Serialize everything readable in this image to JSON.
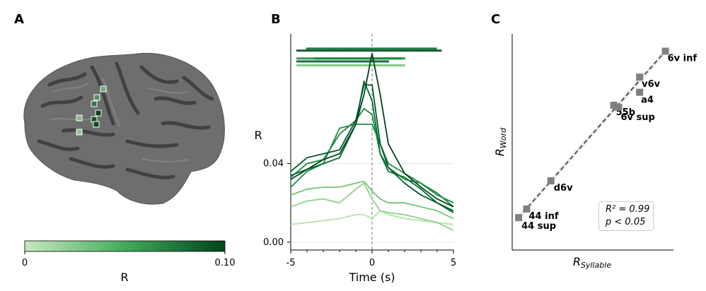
{
  "panels": {
    "a": "A",
    "b": "B",
    "c": "C"
  },
  "colorbar": {
    "min_label": "0",
    "max_label": "0.10",
    "label": "R",
    "colors": [
      "#c7e9c0",
      "#00441b"
    ]
  },
  "brain": {
    "electrodes": [
      {
        "r": 0.055
      },
      {
        "r": 0.04
      },
      {
        "r": 0.07
      },
      {
        "r": 0.1
      },
      {
        "r": 0.09
      },
      {
        "r": 0.095
      },
      {
        "r": 0.03
      },
      {
        "r": 0.025
      }
    ]
  },
  "chart_data": [
    {
      "type": "line",
      "panel": "B",
      "ylabel": "R",
      "xlabel": "Time (s)",
      "xlim": [
        -5,
        5
      ],
      "ylim": [
        -0.004,
        0.106
      ],
      "xticks": [
        "-5",
        "0",
        "5"
      ],
      "yticks": [
        "0.00",
        "0.04"
      ],
      "yticks_values": [
        0.0,
        0.04
      ],
      "xticks_values": [
        -5,
        0,
        5
      ],
      "x": [
        -5,
        -4,
        -3,
        -2,
        -1,
        -0.5,
        0,
        0.5,
        1,
        2,
        3,
        4,
        5
      ],
      "series": [
        {
          "name": "6v inf",
          "color": "#00441b",
          "values": [
            0.032,
            0.037,
            0.042,
            0.045,
            0.06,
            0.075,
            0.096,
            0.075,
            0.05,
            0.035,
            0.028,
            0.022,
            0.018
          ]
        },
        {
          "name": "v6v",
          "color": "#005a32",
          "values": [
            0.036,
            0.043,
            0.045,
            0.047,
            0.062,
            0.08,
            0.08,
            0.05,
            0.038,
            0.03,
            0.024,
            0.02,
            0.016
          ]
        },
        {
          "name": "a4",
          "color": "#006d2c",
          "values": [
            0.034,
            0.037,
            0.04,
            0.043,
            0.06,
            0.082,
            0.072,
            0.045,
            0.036,
            0.033,
            0.027,
            0.02,
            0.015
          ]
        },
        {
          "name": "55b",
          "color": "#1a8a40",
          "values": [
            0.033,
            0.04,
            0.042,
            0.055,
            0.062,
            0.068,
            0.065,
            0.045,
            0.038,
            0.032,
            0.03,
            0.024,
            0.02
          ]
        },
        {
          "name": "6v sup",
          "color": "#238b45",
          "values": [
            0.028,
            0.036,
            0.04,
            0.058,
            0.06,
            0.06,
            0.06,
            0.05,
            0.04,
            0.035,
            0.03,
            0.025,
            0.018
          ]
        },
        {
          "name": "d6v",
          "color": "#74c476",
          "values": [
            0.024,
            0.027,
            0.028,
            0.028,
            0.03,
            0.031,
            0.026,
            0.022,
            0.02,
            0.02,
            0.018,
            0.016,
            0.012
          ]
        },
        {
          "name": "44 inf",
          "color": "#8fd18a",
          "values": [
            0.018,
            0.021,
            0.022,
            0.02,
            0.027,
            0.03,
            0.022,
            0.016,
            0.015,
            0.014,
            0.012,
            0.01,
            0.006
          ]
        },
        {
          "name": "44 sup",
          "color": "#b5e3ab",
          "values": [
            0.009,
            0.01,
            0.011,
            0.012,
            0.014,
            0.014,
            0.012,
            0.016,
            0.014,
            0.012,
            0.011,
            0.01,
            0.009
          ]
        }
      ],
      "significance_bars": [
        {
          "color": "#00441b",
          "y": 0.0975,
          "start": -4.6,
          "end": 4.3
        },
        {
          "color": "#006d2c",
          "y": 0.0985,
          "start": -4.0,
          "end": 4.0
        },
        {
          "color": "#238b45",
          "y": 0.0935,
          "start": -4.6,
          "end": 1.8
        },
        {
          "color": "#1a8a40",
          "y": 0.0935,
          "start": -3.5,
          "end": 2.0
        },
        {
          "color": "#005a32",
          "y": 0.092,
          "start": -4.6,
          "end": 1.0
        },
        {
          "color": "#74c476",
          "y": 0.09,
          "start": -4.6,
          "end": 2.0
        }
      ]
    },
    {
      "type": "scatter",
      "panel": "C",
      "xlabel": "R_Syllable",
      "ylabel": "R_Word",
      "xlim": [
        0,
        1
      ],
      "ylim": [
        0,
        1
      ],
      "points": [
        {
          "label": "6v inf",
          "x": 0.95,
          "y": 0.92
        },
        {
          "label": "v6v",
          "x": 0.79,
          "y": 0.8
        },
        {
          "label": "a4",
          "x": 0.79,
          "y": 0.73
        },
        {
          "label": "55b",
          "x": 0.63,
          "y": 0.67
        },
        {
          "label": "6v sup",
          "x": 0.66,
          "y": 0.66
        },
        {
          "label": "d6v",
          "x": 0.24,
          "y": 0.32
        },
        {
          "label": "44 inf",
          "x": 0.09,
          "y": 0.19
        },
        {
          "label": "44 sup",
          "x": 0.04,
          "y": 0.15
        }
      ],
      "fit_line": {
        "x": [
          0.04,
          0.95
        ],
        "y": [
          0.15,
          0.92
        ]
      },
      "stats": {
        "r2": "R² = 0.99",
        "p": "p < 0.05"
      }
    }
  ]
}
